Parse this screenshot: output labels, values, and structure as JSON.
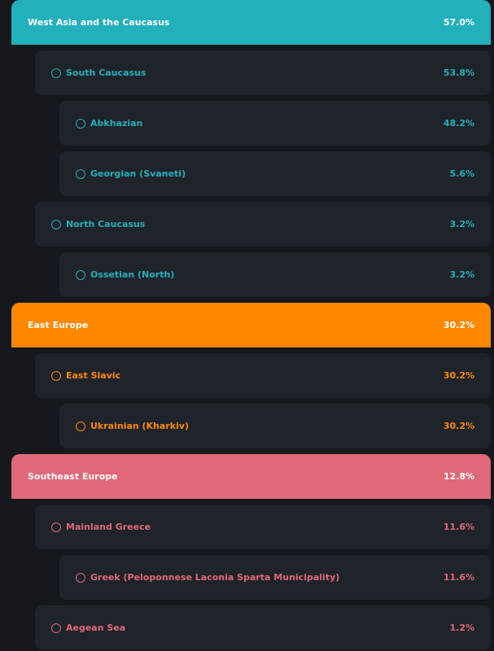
{
  "groups": [
    {
      "label": "West Asia and the Caucasus",
      "value": "57.0%",
      "color": "#22b0bb",
      "children": [
        {
          "label": "South Caucasus",
          "value": "53.8%",
          "level": 1
        },
        {
          "label": "Abkhazian",
          "value": "48.2%",
          "level": 2
        },
        {
          "label": "Georgian (Svaneti)",
          "value": "5.6%",
          "level": 2
        },
        {
          "label": "North Caucasus",
          "value": "3.2%",
          "level": 1
        },
        {
          "label": "Ossetian (North)",
          "value": "3.2%",
          "level": 2
        }
      ]
    },
    {
      "label": "East Europe",
      "value": "30.2%",
      "color": "#ff8800",
      "children": [
        {
          "label": "East Slavic",
          "value": "30.2%",
          "level": 1
        },
        {
          "label": "Ukrainian (Kharkiv)",
          "value": "30.2%",
          "level": 2
        }
      ]
    },
    {
      "label": "Southeast Europe",
      "value": "12.8%",
      "color": "#e06877",
      "children": [
        {
          "label": "Mainland Greece",
          "value": "11.6%",
          "level": 1
        },
        {
          "label": "Greek (Peloponnese Laconia Sparta Municipality)",
          "value": "11.6%",
          "level": 2
        },
        {
          "label": "Aegean Sea",
          "value": "1.2%",
          "level": 1
        }
      ]
    }
  ]
}
